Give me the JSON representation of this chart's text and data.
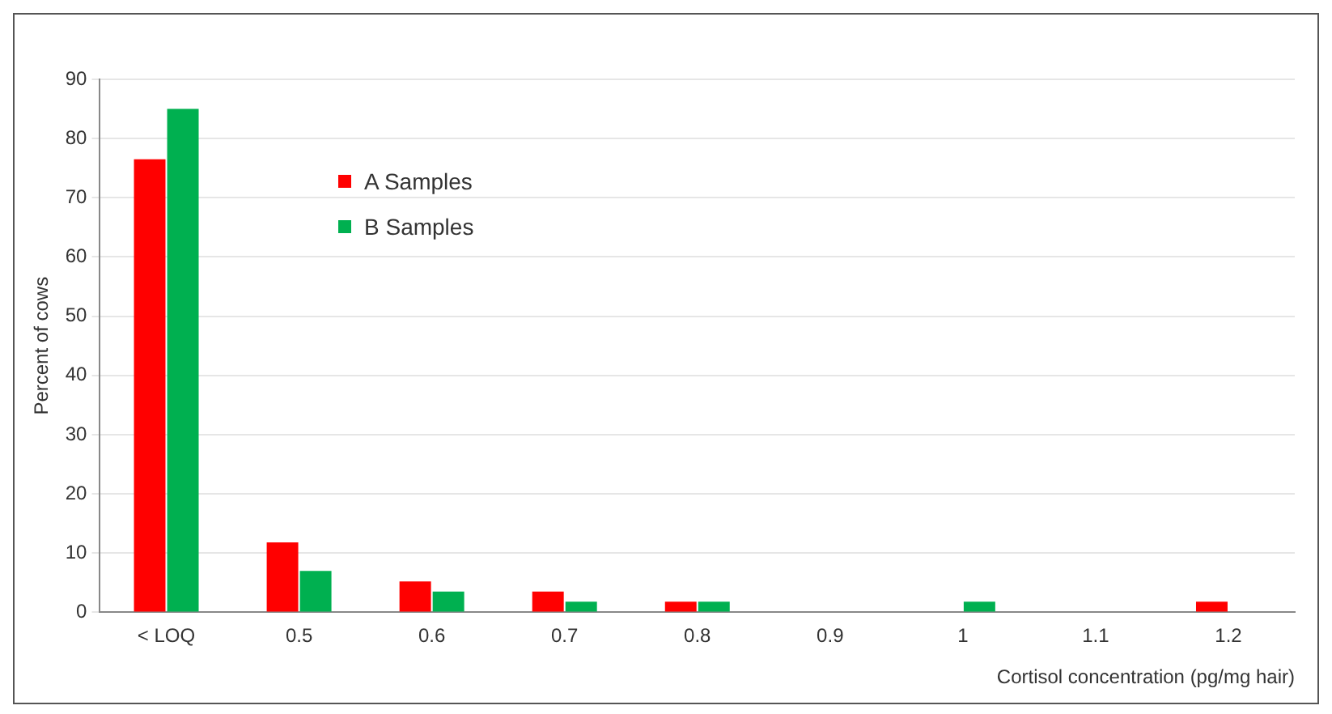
{
  "chart_data": {
    "type": "bar",
    "xlabel": "Cortisol concentration (pg/mg hair)",
    "ylabel": "Percent of cows",
    "categories": [
      "< LOQ",
      "0.5",
      "0.6",
      "0.7",
      "0.8",
      "0.9",
      "1",
      "1.1",
      "1.2"
    ],
    "series": [
      {
        "name": "A Samples",
        "color": "#ff0000",
        "values": [
          76.5,
          11.8,
          5.2,
          3.5,
          1.8,
          0,
          0,
          0,
          1.8
        ]
      },
      {
        "name": "B Samples",
        "color": "#00b050",
        "values": [
          85,
          7,
          3.5,
          1.8,
          1.8,
          0,
          1.8,
          0,
          0
        ]
      }
    ],
    "ylim": [
      0,
      90
    ],
    "yticks": [
      0,
      10,
      20,
      30,
      40,
      50,
      60,
      70,
      80,
      90
    ],
    "grid": "y",
    "legend": "top left"
  }
}
